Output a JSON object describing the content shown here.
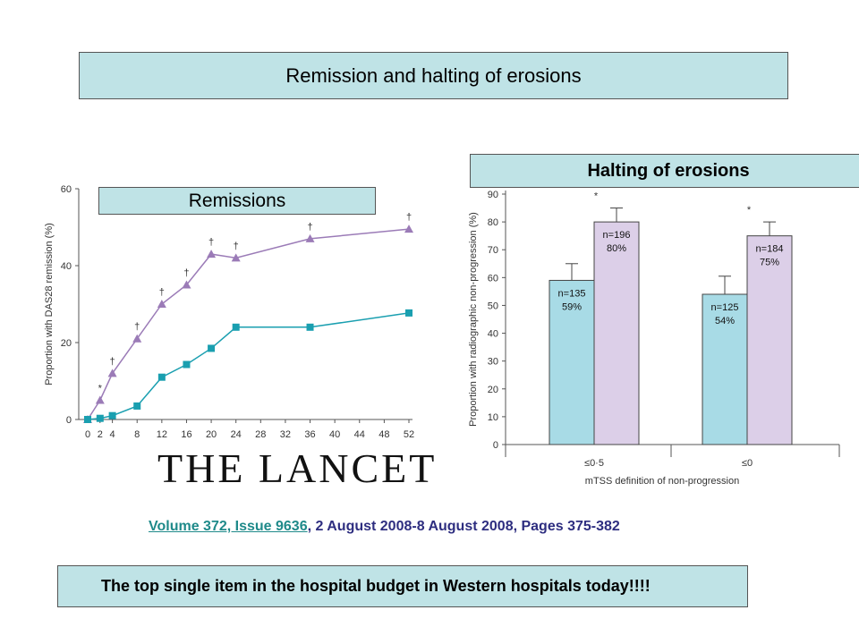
{
  "slide": {
    "title": "Remission and halting of erosions",
    "remissions_label": "Remissions",
    "halting_label": "Halting of erosions",
    "logo_text": "THE LANCET",
    "citation_link": "Volume 372, Issue 9636",
    "citation_rest": ", 2 August 2008-8 August 2008, Pages 375-382",
    "bottom_text": "The top single item in the hospital budget in Western hospitals today!!!!"
  },
  "colors": {
    "purple": "#9b7bb7",
    "teal": "#1a9fb0",
    "bar_teal": "#a8dbe6",
    "bar_purple": "#dccfe8",
    "box_fill": "#bfe3e6"
  },
  "chart_data": [
    {
      "type": "line",
      "title": "",
      "xlabel": "",
      "ylabel": "Proportion with DAS28 remission (%)",
      "xlim": [
        0,
        52
      ],
      "ylim": [
        0,
        60
      ],
      "xticks": [
        0,
        2,
        4,
        8,
        12,
        16,
        20,
        24,
        28,
        32,
        36,
        40,
        44,
        48,
        52
      ],
      "yticks": [
        0,
        20,
        40,
        60
      ],
      "series": [
        {
          "color": "#9b7bb7",
          "marker": "triangle",
          "x": [
            0,
            2,
            4,
            8,
            12,
            16,
            20,
            24,
            36,
            52
          ],
          "y": [
            0,
            5,
            12,
            21,
            30,
            35,
            43,
            42,
            47,
            49.5
          ],
          "annotations": [
            "",
            "*",
            "†",
            "†",
            "†",
            "†",
            "†",
            "†",
            "†",
            "†"
          ]
        },
        {
          "color": "#1a9fb0",
          "marker": "square",
          "x": [
            0,
            2,
            4,
            8,
            12,
            16,
            20,
            24,
            36,
            52
          ],
          "y": [
            0,
            0.3,
            1,
            3.5,
            11,
            14.3,
            18.5,
            24,
            24,
            27.7
          ]
        }
      ]
    },
    {
      "type": "bar",
      "title": "",
      "xlabel": "mTSS definition of non-progression",
      "ylabel": "Proportion with radiographic non-progression (%)",
      "ylim": [
        0,
        90
      ],
      "yticks": [
        0,
        10,
        20,
        30,
        40,
        50,
        60,
        70,
        80,
        90
      ],
      "categories": [
        "≤0·5",
        "≤0"
      ],
      "series": [
        {
          "values": [
            59,
            54
          ],
          "errors": [
            65,
            60.5
          ],
          "labels": [
            "n=135\n59%",
            "n=125\n54%"
          ],
          "annotations": [
            "",
            ""
          ],
          "color": "#a8dbe6"
        },
        {
          "values": [
            80,
            75
          ],
          "errors": [
            85,
            80
          ],
          "labels": [
            "n=196\n80%",
            "n=184\n75%"
          ],
          "annotations": [
            "*",
            "*"
          ],
          "color": "#dccfe8"
        }
      ]
    }
  ]
}
